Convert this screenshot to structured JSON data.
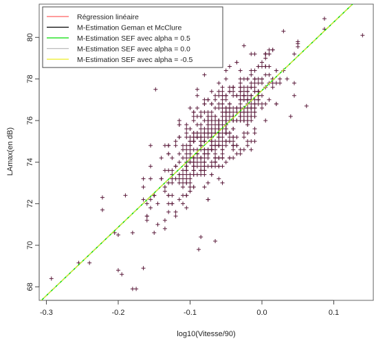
{
  "chart_data": {
    "type": "scatter",
    "title": "",
    "xlabel": "log10(Vitesse/90)",
    "ylabel": "LAmax(en dB)",
    "xlim": [
      -0.31,
      0.155
    ],
    "ylim": [
      67.35,
      81.6
    ],
    "x_ticks": [
      -0.3,
      -0.2,
      -0.1,
      0.0,
      0.1
    ],
    "x_tick_labels": [
      "-0.3",
      "-0.2",
      "-0.1",
      "0.0",
      "0.1"
    ],
    "y_ticks": [
      68,
      70,
      72,
      74,
      76,
      78,
      80
    ],
    "y_tick_labels": [
      "68",
      "70",
      "72",
      "74",
      "76",
      "78",
      "80"
    ],
    "grid": false,
    "legend_position": "top-left",
    "marker": "+",
    "marker_color": "#5a1a3a",
    "lines": [
      {
        "name": "Régression linéaire",
        "color": "#ff6060",
        "intercept": 77.45,
        "slope": 32.9
      },
      {
        "name": "M-Estimation Geman et McClure",
        "color": "#000000",
        "intercept": 77.45,
        "slope": 32.9
      },
      {
        "name": "M-Estimation SEF avec alpha = 0.5",
        "color": "#00dd00",
        "intercept": 77.45,
        "slope": 32.9
      },
      {
        "name": "M-Estimation SEF avec alpha = 0.0",
        "color": "#bbbbbb",
        "intercept": 77.45,
        "slope": 32.9
      },
      {
        "name": "M-Estimation SEF avec alpha = -0.5",
        "color": "#eeee22",
        "intercept": 77.45,
        "slope": 32.9
      }
    ],
    "outliers": [
      {
        "x": -0.293,
        "y": 68.4
      },
      {
        "x": -0.255,
        "y": 69.15
      },
      {
        "x": -0.24,
        "y": 69.15
      },
      {
        "x": -0.222,
        "y": 72.3
      },
      {
        "x": -0.222,
        "y": 71.7
      },
      {
        "x": -0.205,
        "y": 70.6
      },
      {
        "x": -0.2,
        "y": 70.5
      },
      {
        "x": -0.2,
        "y": 68.8
      },
      {
        "x": -0.195,
        "y": 68.6
      },
      {
        "x": -0.18,
        "y": 67.9
      },
      {
        "x": -0.175,
        "y": 67.9
      },
      {
        "x": -0.165,
        "y": 68.9
      },
      {
        "x": -0.148,
        "y": 77.5
      },
      {
        "x": -0.09,
        "y": 77.5
      },
      {
        "x": -0.088,
        "y": 69.8
      },
      {
        "x": -0.065,
        "y": 70.2
      },
      {
        "x": 0.03,
        "y": 80.3
      },
      {
        "x": 0.05,
        "y": 79.7
      },
      {
        "x": 0.05,
        "y": 79.55
      },
      {
        "x": 0.062,
        "y": 76.7
      },
      {
        "x": 0.087,
        "y": 80.9
      },
      {
        "x": 0.087,
        "y": 80.4
      },
      {
        "x": 0.14,
        "y": 80.1
      }
    ],
    "cluster": {
      "count": 640,
      "x_center": -0.06,
      "x_sd": 0.045,
      "slope": 32.9,
      "intercept": 77.45,
      "residual_sd": 1.05,
      "x_range": [
        -0.21,
        0.075
      ],
      "y_range": [
        70.2,
        79.8
      ]
    }
  }
}
